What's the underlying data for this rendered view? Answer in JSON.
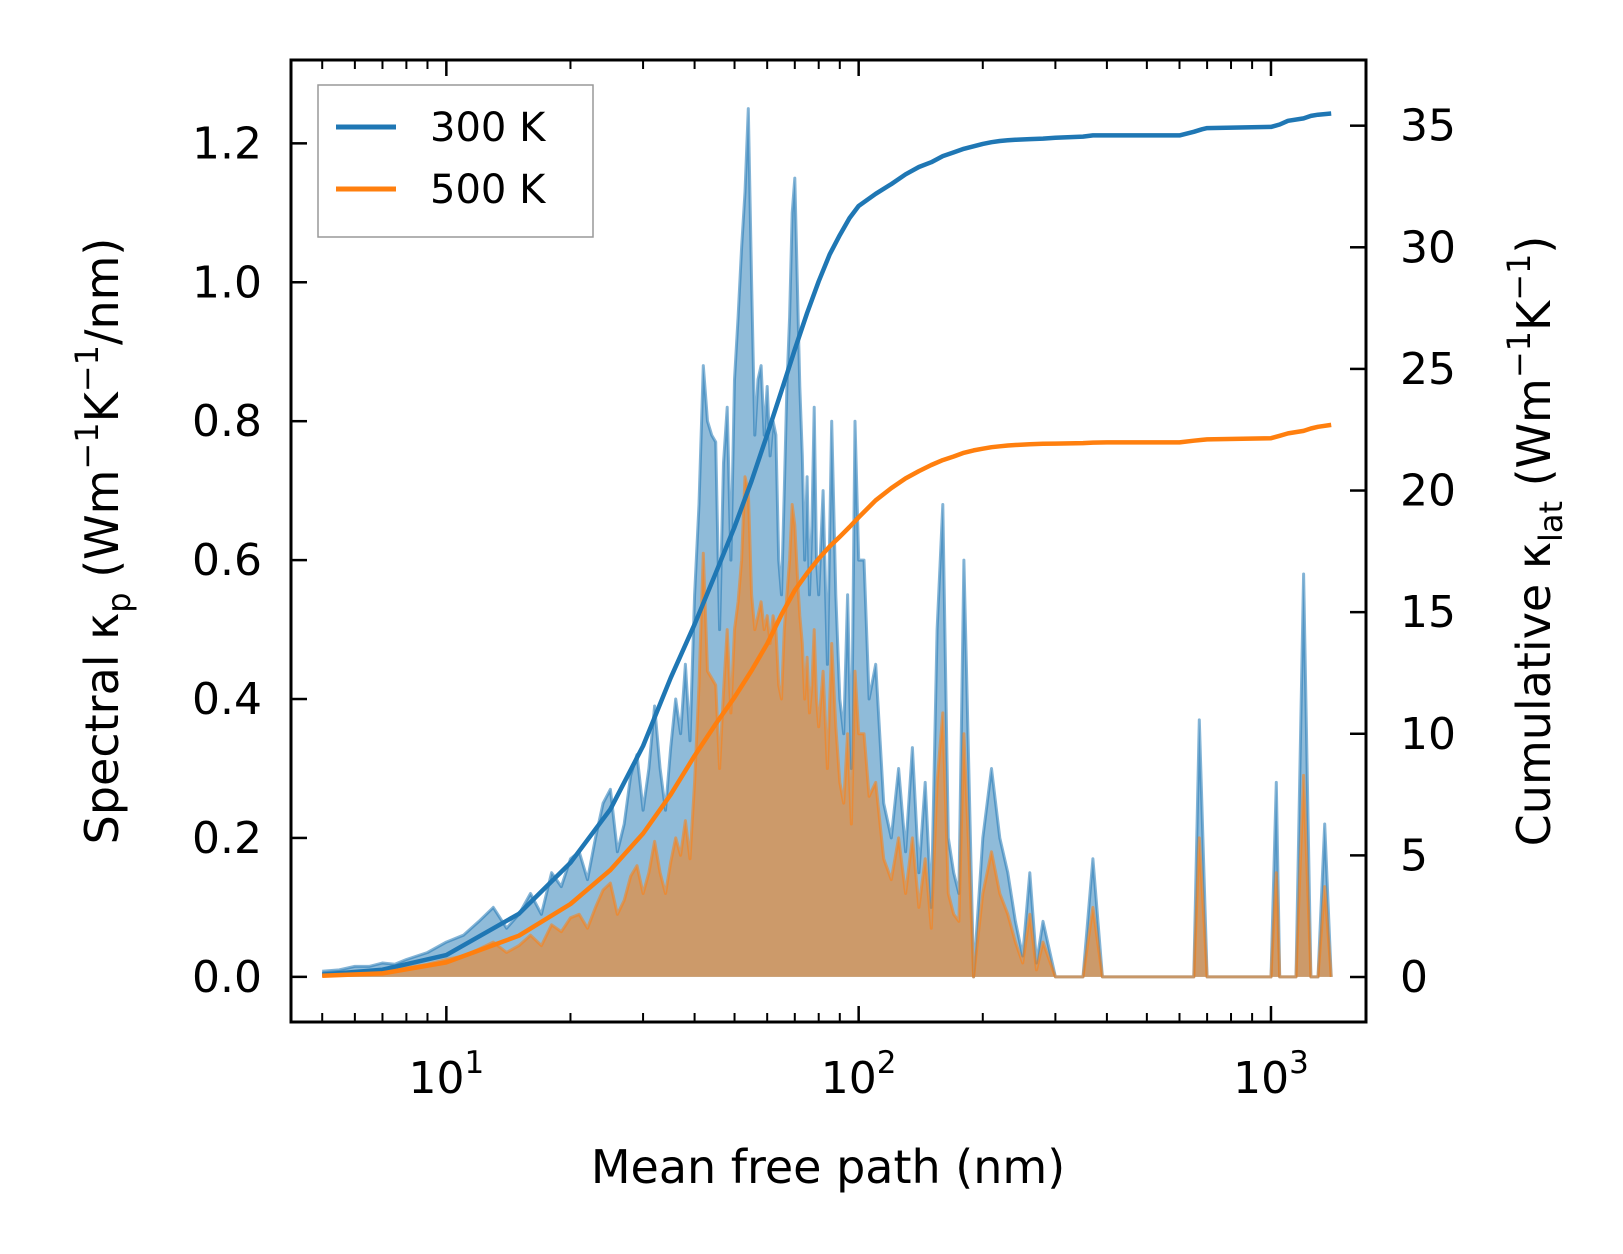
{
  "chart_data": {
    "type": "area",
    "title": "",
    "xlabel": "Mean free path (nm)",
    "ylabel_left_parts": [
      "Spectral κ",
      "p",
      " (Wm",
      "−1",
      "K",
      "−1",
      "/nm)"
    ],
    "ylabel_right_parts": [
      "Cumulative κ",
      "lat",
      " (Wm",
      "−1",
      "K",
      "−1",
      ")"
    ],
    "x_scale": "log",
    "xlim": [
      4.2,
      1700
    ],
    "ylim_left": [
      -0.065,
      1.32
    ],
    "ylim_right": [
      -1.85,
      37.7
    ],
    "x_ticks": [
      {
        "value": 10,
        "base": "10",
        "exp": "1"
      },
      {
        "value": 100,
        "base": "10",
        "exp": "2"
      },
      {
        "value": 1000,
        "base": "10",
        "exp": "3"
      }
    ],
    "y_ticks_left": [
      "0.0",
      "0.2",
      "0.4",
      "0.6",
      "0.8",
      "1.0",
      "1.2"
    ],
    "y_ticks_right": [
      "0",
      "5",
      "10",
      "15",
      "20",
      "25",
      "30",
      "35"
    ],
    "legend": {
      "position": "upper-left",
      "entries": [
        "300 K",
        "500 K"
      ]
    },
    "series": [
      {
        "name": "300 K",
        "color": "#1f77b4",
        "x": [
          5,
          5.5,
          6,
          6.5,
          7,
          7.5,
          8,
          9,
          10,
          11,
          12,
          13,
          14,
          15,
          16,
          17,
          18,
          19,
          20,
          21,
          22,
          23,
          24,
          25,
          26,
          27,
          28,
          29,
          30,
          31,
          32,
          33,
          34,
          35,
          36,
          37,
          38,
          39,
          40,
          41,
          42,
          43,
          44,
          45,
          46,
          47,
          48,
          49,
          50,
          51,
          52,
          53,
          54,
          55,
          56,
          57,
          58,
          59,
          60,
          61,
          62,
          63,
          64,
          65,
          66,
          67,
          68,
          69,
          70,
          71,
          72,
          73,
          74,
          75,
          76,
          77,
          78,
          79,
          80,
          82,
          84,
          86,
          88,
          90,
          92,
          94,
          96,
          98,
          100,
          103,
          106,
          110,
          115,
          120,
          125,
          130,
          135,
          140,
          145,
          150,
          155,
          160,
          165,
          170,
          175,
          180,
          185,
          190,
          200,
          210,
          220,
          230,
          240,
          250,
          260,
          270,
          280,
          300,
          350,
          370,
          390,
          600,
          650,
          670,
          700,
          900,
          1000,
          1030,
          1050,
          1100,
          1150,
          1200,
          1250,
          1300,
          1350,
          1400
        ],
        "spectral": [
          0.008,
          0.01,
          0.015,
          0.015,
          0.02,
          0.018,
          0.025,
          0.035,
          0.05,
          0.06,
          0.08,
          0.1,
          0.07,
          0.09,
          0.12,
          0.09,
          0.15,
          0.13,
          0.17,
          0.18,
          0.14,
          0.2,
          0.25,
          0.27,
          0.18,
          0.22,
          0.29,
          0.32,
          0.24,
          0.3,
          0.39,
          0.3,
          0.24,
          0.33,
          0.4,
          0.35,
          0.45,
          0.34,
          0.55,
          0.68,
          0.88,
          0.8,
          0.78,
          0.77,
          0.5,
          0.74,
          0.82,
          0.6,
          0.86,
          0.95,
          1.05,
          1.13,
          1.25,
          1.0,
          0.78,
          0.86,
          0.88,
          0.78,
          0.85,
          0.75,
          0.8,
          0.78,
          0.6,
          0.55,
          0.7,
          0.85,
          0.95,
          1.1,
          1.15,
          1.0,
          0.85,
          0.75,
          0.6,
          0.72,
          0.55,
          0.65,
          0.82,
          0.6,
          0.55,
          0.7,
          0.45,
          0.8,
          0.55,
          0.4,
          0.35,
          0.55,
          0.3,
          0.8,
          0.6,
          0.6,
          0.4,
          0.45,
          0.25,
          0.2,
          0.3,
          0.18,
          0.33,
          0.15,
          0.28,
          0.1,
          0.5,
          0.68,
          0.2,
          0.15,
          0.12,
          0.6,
          0.3,
          0.0,
          0.2,
          0.3,
          0.2,
          0.15,
          0.08,
          0.03,
          0.15,
          0.02,
          0.08,
          0.0,
          0.0,
          0.17,
          0.0,
          0.0,
          0.0,
          0.37,
          0.0,
          0.0,
          0.0,
          0.28,
          0.0,
          0.0,
          0.0,
          0.58,
          0.0,
          0.0,
          0.22,
          0.0
        ],
        "cum_x": [
          5,
          7,
          10,
          15,
          20,
          25,
          30,
          35,
          40,
          45,
          50,
          55,
          60,
          65,
          70,
          75,
          80,
          85,
          90,
          95,
          100,
          110,
          120,
          130,
          140,
          150,
          160,
          170,
          180,
          190,
          200,
          210,
          220,
          230,
          240,
          260,
          280,
          300,
          350,
          370,
          400,
          600,
          650,
          680,
          700,
          1000,
          1050,
          1100,
          1200,
          1250,
          1300,
          1400
        ],
        "cumulative": [
          0.1,
          0.3,
          0.9,
          2.6,
          4.7,
          6.9,
          9.5,
          12.3,
          14.5,
          16.6,
          18.5,
          20.4,
          22.3,
          24.1,
          25.8,
          27.3,
          28.6,
          29.7,
          30.5,
          31.2,
          31.7,
          32.2,
          32.6,
          33.0,
          33.3,
          33.5,
          33.75,
          33.9,
          34.05,
          34.15,
          34.25,
          34.32,
          34.37,
          34.4,
          34.42,
          34.45,
          34.47,
          34.5,
          34.55,
          34.6,
          34.6,
          34.6,
          34.75,
          34.85,
          34.9,
          34.95,
          35.05,
          35.2,
          35.3,
          35.4,
          35.45,
          35.5
        ]
      },
      {
        "name": "500 K",
        "color": "#ff7f0e",
        "x": [
          5,
          5.5,
          6,
          6.5,
          7,
          7.5,
          8,
          9,
          10,
          11,
          12,
          13,
          14,
          15,
          16,
          17,
          18,
          19,
          20,
          21,
          22,
          23,
          24,
          25,
          26,
          27,
          28,
          29,
          30,
          31,
          32,
          33,
          34,
          35,
          36,
          37,
          38,
          39,
          40,
          41,
          42,
          43,
          44,
          45,
          46,
          47,
          48,
          49,
          50,
          51,
          52,
          53,
          54,
          55,
          56,
          57,
          58,
          59,
          60,
          61,
          62,
          63,
          64,
          65,
          66,
          67,
          68,
          69,
          70,
          71,
          72,
          73,
          74,
          75,
          76,
          77,
          78,
          79,
          80,
          82,
          84,
          86,
          88,
          90,
          92,
          94,
          96,
          98,
          100,
          103,
          106,
          110,
          115,
          120,
          125,
          130,
          135,
          140,
          145,
          150,
          155,
          160,
          165,
          170,
          175,
          180,
          185,
          190,
          200,
          210,
          220,
          230,
          240,
          250,
          260,
          270,
          280,
          300,
          350,
          370,
          390,
          600,
          650,
          670,
          700,
          900,
          1000,
          1030,
          1050,
          1100,
          1150,
          1200,
          1250,
          1300,
          1350,
          1400
        ],
        "spectral": [
          0.004,
          0.005,
          0.008,
          0.008,
          0.01,
          0.009,
          0.013,
          0.018,
          0.025,
          0.03,
          0.04,
          0.05,
          0.035,
          0.045,
          0.06,
          0.045,
          0.075,
          0.065,
          0.085,
          0.09,
          0.07,
          0.1,
          0.125,
          0.135,
          0.09,
          0.11,
          0.145,
          0.16,
          0.12,
          0.15,
          0.195,
          0.15,
          0.12,
          0.165,
          0.2,
          0.175,
          0.225,
          0.17,
          0.28,
          0.42,
          0.61,
          0.44,
          0.43,
          0.42,
          0.3,
          0.41,
          0.5,
          0.38,
          0.5,
          0.54,
          0.6,
          0.72,
          0.7,
          0.55,
          0.5,
          0.52,
          0.54,
          0.5,
          0.52,
          0.48,
          0.52,
          0.5,
          0.42,
          0.4,
          0.5,
          0.55,
          0.6,
          0.68,
          0.65,
          0.58,
          0.52,
          0.48,
          0.4,
          0.46,
          0.38,
          0.42,
          0.5,
          0.4,
          0.36,
          0.44,
          0.3,
          0.48,
          0.36,
          0.28,
          0.25,
          0.35,
          0.22,
          0.44,
          0.35,
          0.35,
          0.26,
          0.28,
          0.17,
          0.14,
          0.2,
          0.12,
          0.2,
          0.1,
          0.17,
          0.07,
          0.28,
          0.38,
          0.12,
          0.09,
          0.08,
          0.35,
          0.18,
          0.0,
          0.12,
          0.18,
          0.12,
          0.09,
          0.05,
          0.02,
          0.09,
          0.01,
          0.05,
          0.0,
          0.0,
          0.1,
          0.0,
          0.0,
          0.0,
          0.2,
          0.0,
          0.0,
          0.0,
          0.15,
          0.0,
          0.0,
          0.0,
          0.29,
          0.0,
          0.0,
          0.13,
          0.0
        ],
        "cum_x": [
          5,
          7,
          10,
          15,
          20,
          25,
          30,
          35,
          40,
          45,
          50,
          55,
          60,
          65,
          70,
          75,
          80,
          85,
          90,
          95,
          100,
          110,
          120,
          130,
          140,
          150,
          160,
          170,
          180,
          190,
          200,
          210,
          220,
          230,
          240,
          260,
          280,
          300,
          350,
          370,
          400,
          600,
          650,
          680,
          700,
          1000,
          1050,
          1100,
          1200,
          1250,
          1300,
          1400
        ],
        "cumulative": [
          0.05,
          0.15,
          0.6,
          1.7,
          3.0,
          4.4,
          5.9,
          7.5,
          9.1,
          10.4,
          11.5,
          12.6,
          13.7,
          14.9,
          15.9,
          16.6,
          17.2,
          17.7,
          18.1,
          18.5,
          18.9,
          19.6,
          20.1,
          20.5,
          20.8,
          21.05,
          21.25,
          21.4,
          21.55,
          21.65,
          21.72,
          21.78,
          21.82,
          21.85,
          21.87,
          21.9,
          21.92,
          21.93,
          21.95,
          21.97,
          21.98,
          21.98,
          22.05,
          22.08,
          22.1,
          22.15,
          22.25,
          22.35,
          22.45,
          22.55,
          22.62,
          22.7
        ]
      }
    ]
  }
}
